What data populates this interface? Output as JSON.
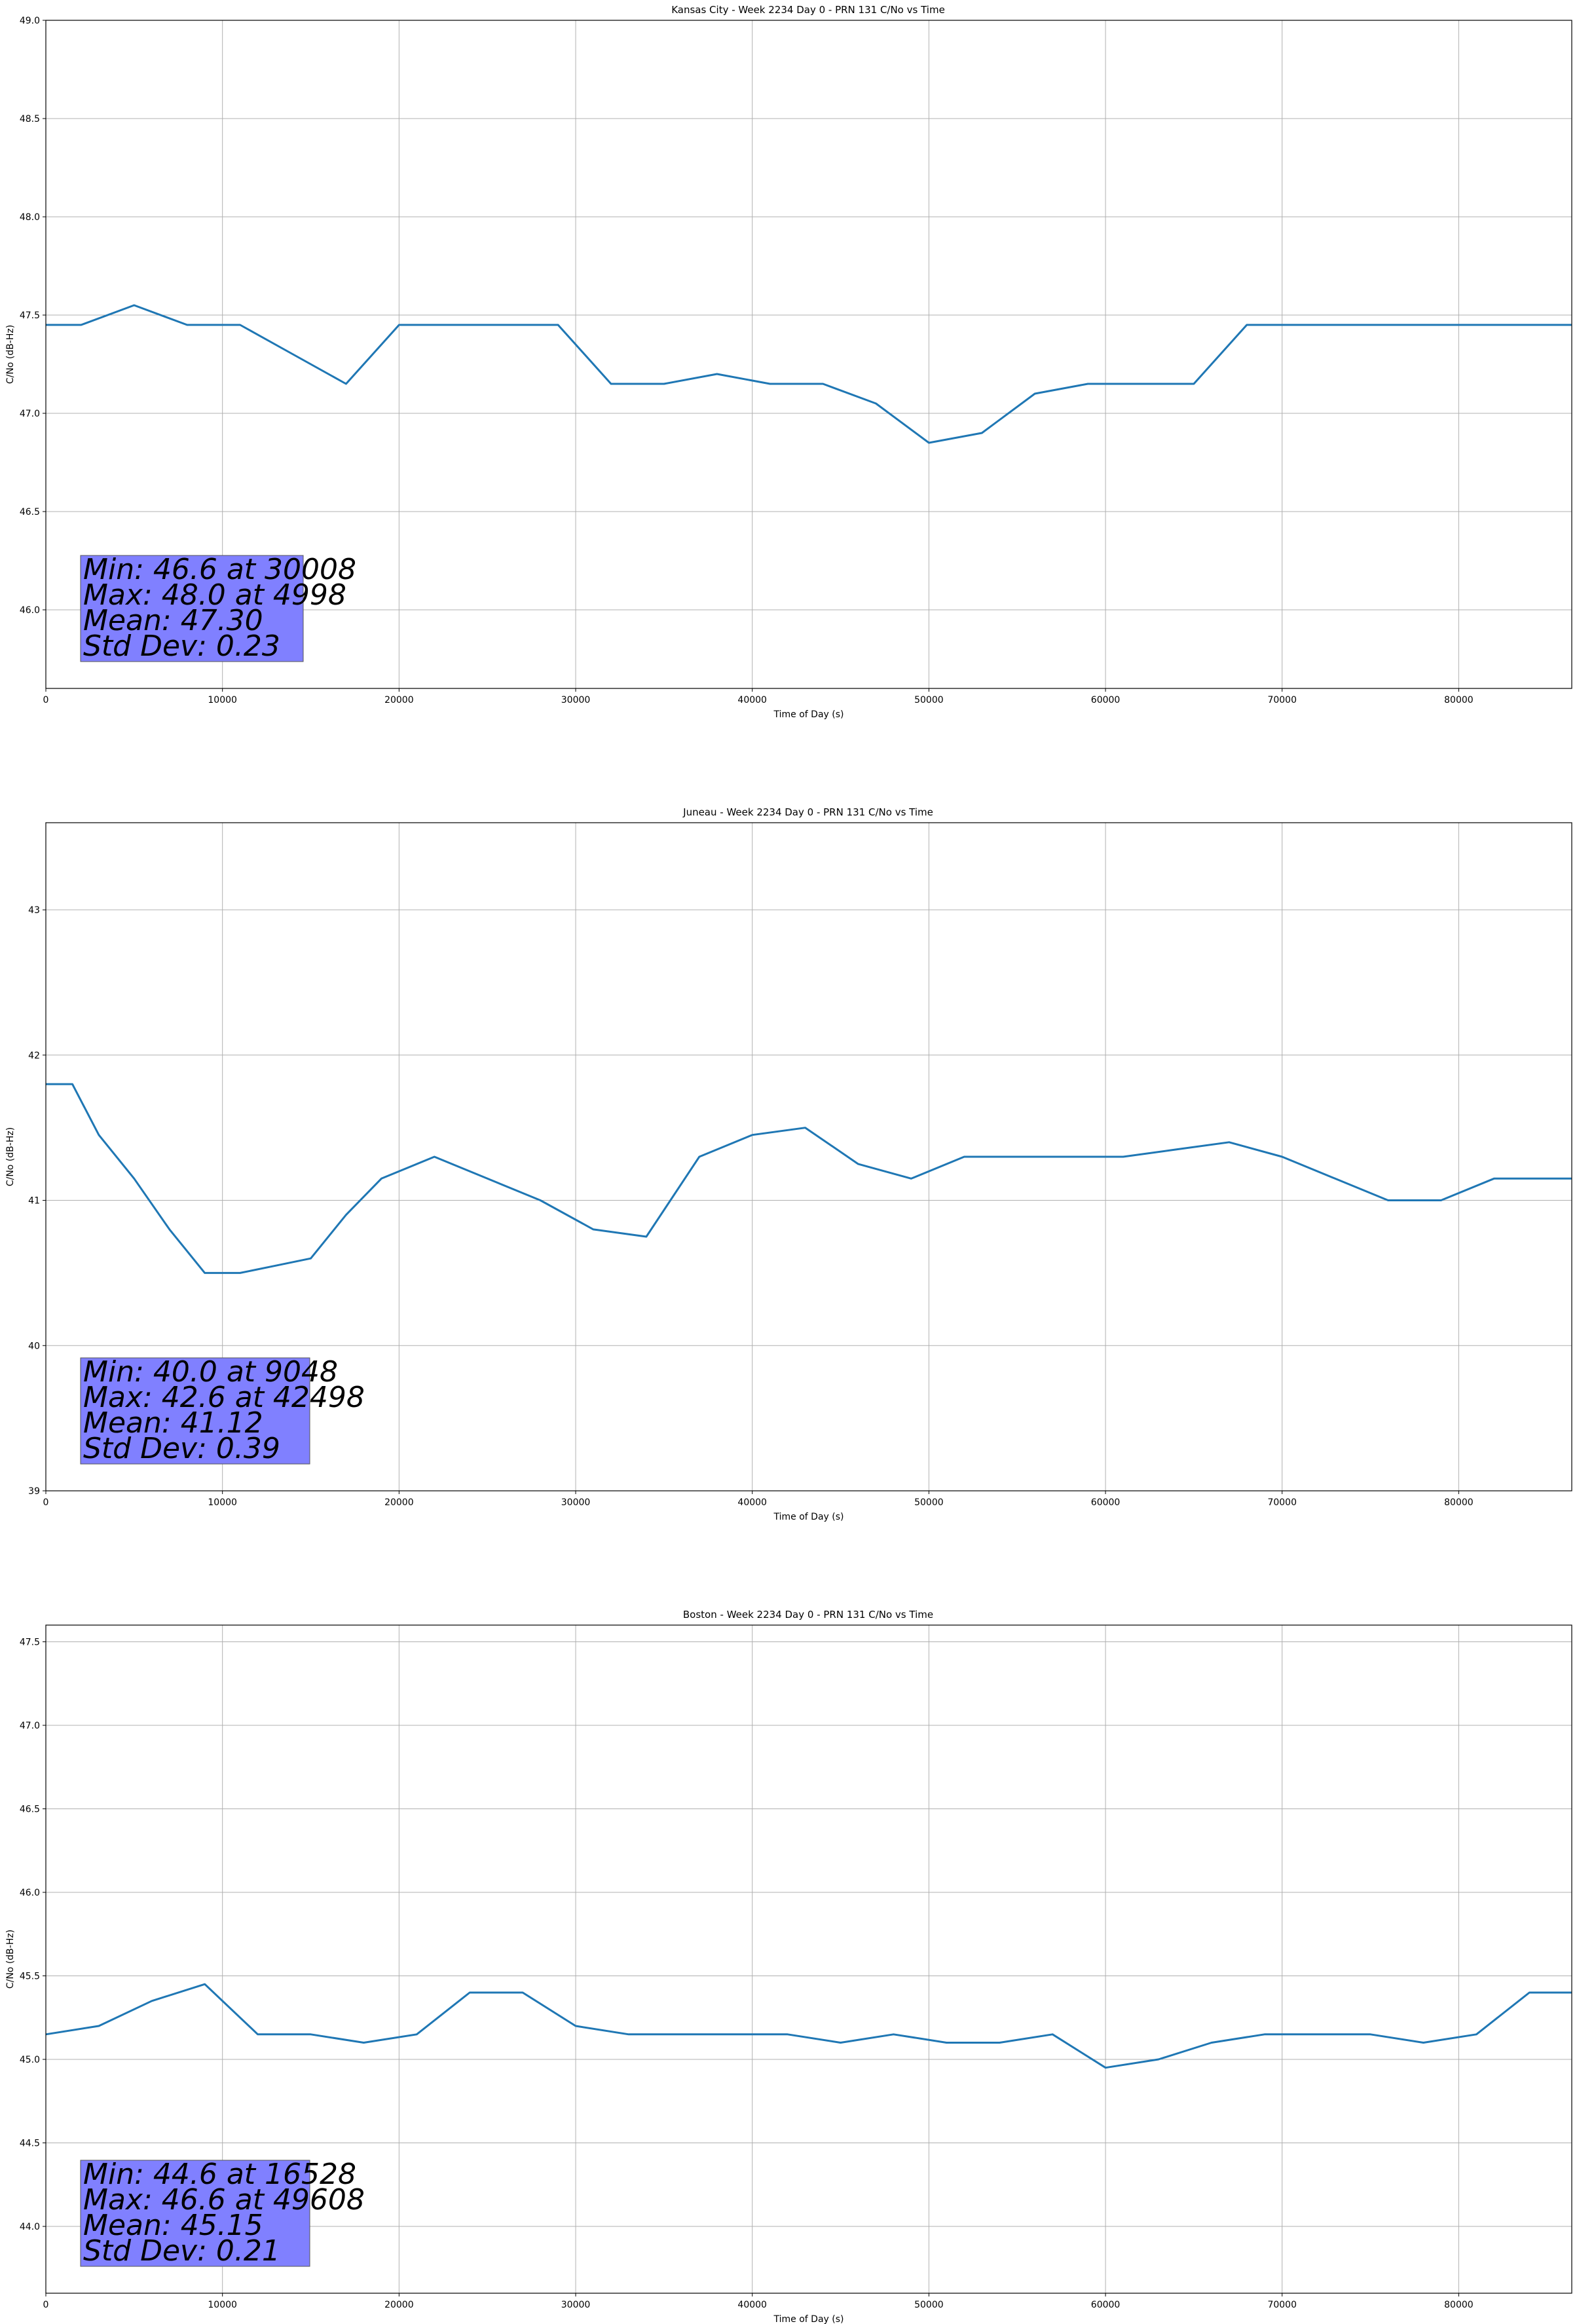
{
  "chart_data": [
    {
      "type": "line",
      "title": "Kansas City - Week 2234 Day 0 - PRN 131 C/No vs Time",
      "xlabel": "Time of Day (s)",
      "ylabel": "C/No (dB-Hz)",
      "xlim": [
        0,
        86400
      ],
      "ylim": [
        45.6,
        49.0
      ],
      "xticks": [
        0,
        10000,
        20000,
        30000,
        40000,
        50000,
        60000,
        70000,
        80000
      ],
      "yticks": [
        46.0,
        46.5,
        47.0,
        47.5,
        48.0,
        48.5,
        49.0
      ],
      "ytick_labels": [
        "46.0",
        "46.5",
        "47.0",
        "47.5",
        "48.0",
        "48.5",
        "49.0"
      ],
      "grid": true,
      "series_color": "#1f77b4",
      "stats": {
        "min": "Min: 46.6 at 30008",
        "max": "Max: 48.0 at 4998",
        "mean": "Mean: 47.30",
        "std": "Std Dev: 0.23"
      },
      "series": [
        {
          "x": [
            0,
            2000,
            5000,
            8000,
            11000,
            14000,
            17000,
            20000,
            23000,
            26000,
            29000,
            32000,
            35000,
            38000,
            41000,
            44000,
            47000,
            50000,
            53000,
            56000,
            59000,
            62000,
            65000,
            68000,
            71000,
            74000,
            77000,
            80000,
            83000,
            86400
          ],
          "y": [
            47.45,
            47.45,
            47.55,
            47.45,
            47.45,
            47.3,
            47.15,
            47.45,
            47.45,
            47.45,
            47.45,
            47.15,
            47.15,
            47.2,
            47.15,
            47.15,
            47.05,
            46.85,
            46.9,
            47.1,
            47.15,
            47.15,
            47.15,
            47.45,
            47.45,
            47.45,
            47.45,
            47.45,
            47.45,
            47.45
          ]
        }
      ]
    },
    {
      "type": "line",
      "title": "Juneau - Week 2234 Day 0 - PRN 131 C/No vs Time",
      "xlabel": "Time of Day (s)",
      "ylabel": "C/No (dB-Hz)",
      "xlim": [
        0,
        86400
      ],
      "ylim": [
        39.0,
        43.6
      ],
      "xticks": [
        0,
        10000,
        20000,
        30000,
        40000,
        50000,
        60000,
        70000,
        80000
      ],
      "yticks": [
        39,
        40,
        41,
        42,
        43
      ],
      "ytick_labels": [
        "39",
        "40",
        "41",
        "42",
        "43"
      ],
      "grid": true,
      "series_color": "#1f77b4",
      "stats": {
        "min": "Min: 40.0 at 9048",
        "max": "Max: 42.6 at 42498",
        "mean": "Mean: 41.12",
        "std": "Std Dev: 0.39"
      },
      "series": [
        {
          "x": [
            0,
            1500,
            3000,
            5000,
            7000,
            9000,
            11000,
            13000,
            15000,
            17000,
            19000,
            22000,
            25000,
            28000,
            31000,
            34000,
            37000,
            40000,
            43000,
            46000,
            49000,
            52000,
            55000,
            58000,
            61000,
            64000,
            67000,
            70000,
            73000,
            76000,
            79000,
            82000,
            86400
          ],
          "y": [
            41.8,
            41.8,
            41.45,
            41.15,
            40.8,
            40.5,
            40.5,
            40.55,
            40.6,
            40.9,
            41.15,
            41.3,
            41.15,
            41.0,
            40.8,
            40.75,
            41.3,
            41.45,
            41.5,
            41.25,
            41.15,
            41.3,
            41.3,
            41.3,
            41.3,
            41.35,
            41.4,
            41.3,
            41.15,
            41.0,
            41.0,
            41.15,
            41.15
          ]
        }
      ]
    },
    {
      "type": "line",
      "title": "Boston - Week 2234 Day 0 - PRN 131 C/No vs Time",
      "xlabel": "Time of Day (s)",
      "ylabel": "C/No (dB-Hz)",
      "xlim": [
        0,
        86400
      ],
      "ylim": [
        43.6,
        47.6
      ],
      "xticks": [
        0,
        10000,
        20000,
        30000,
        40000,
        50000,
        60000,
        70000,
        80000
      ],
      "yticks": [
        44.0,
        44.5,
        45.0,
        45.5,
        46.0,
        46.5,
        47.0,
        47.5
      ],
      "ytick_labels": [
        "44.0",
        "44.5",
        "45.0",
        "45.5",
        "46.0",
        "46.5",
        "47.0",
        "47.5"
      ],
      "grid": true,
      "series_color": "#1f77b4",
      "stats": {
        "min": "Min: 44.6 at 16528",
        "max": "Max: 46.6 at 49608",
        "mean": "Mean: 45.15",
        "std": "Std Dev: 0.21"
      },
      "series": [
        {
          "x": [
            0,
            3000,
            6000,
            9000,
            12000,
            15000,
            18000,
            21000,
            24000,
            27000,
            30000,
            33000,
            36000,
            39000,
            42000,
            45000,
            48000,
            51000,
            54000,
            57000,
            60000,
            63000,
            66000,
            69000,
            72000,
            75000,
            78000,
            81000,
            84000,
            86400
          ],
          "y": [
            45.15,
            45.2,
            45.35,
            45.45,
            45.15,
            45.15,
            45.1,
            45.15,
            45.4,
            45.4,
            45.2,
            45.15,
            45.15,
            45.15,
            45.15,
            45.1,
            45.15,
            45.1,
            45.1,
            45.15,
            44.95,
            45.0,
            45.1,
            45.15,
            45.15,
            45.15,
            45.1,
            45.15,
            45.4,
            45.4
          ]
        }
      ]
    }
  ]
}
